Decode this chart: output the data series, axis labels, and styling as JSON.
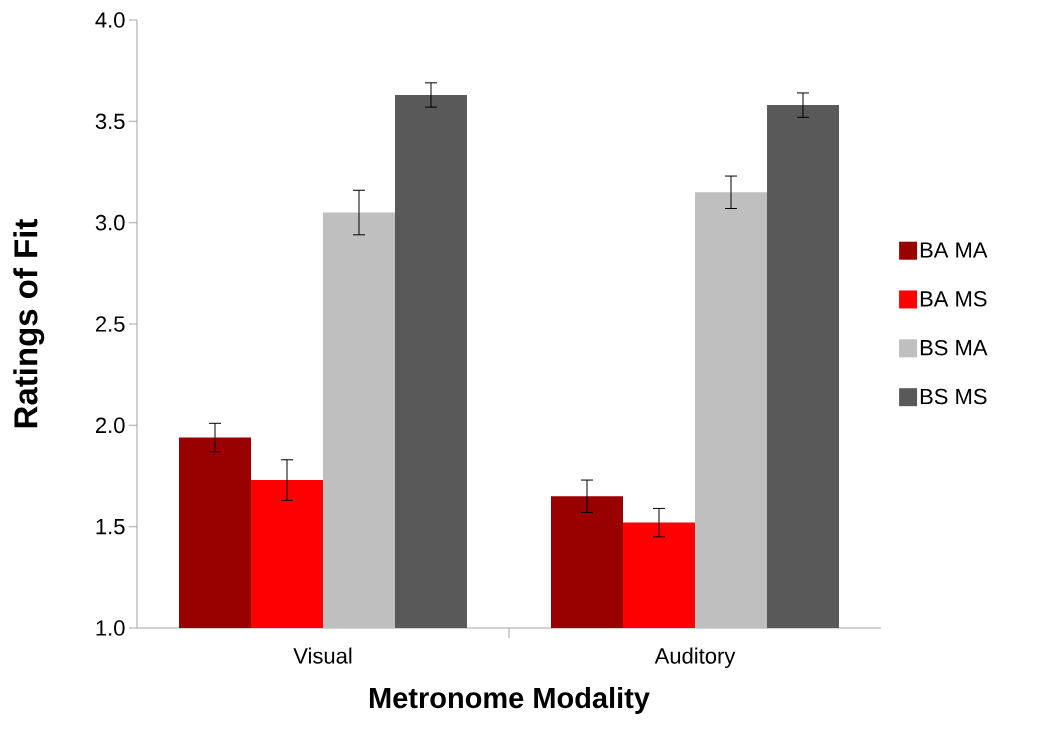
{
  "chart_data": {
    "type": "bar",
    "xlabel": "Metronome Modality",
    "ylabel": "Ratings of Fit",
    "categories": [
      "Visual",
      "Auditory"
    ],
    "series": [
      {
        "name": "BA MA",
        "color": "#990000",
        "values": [
          1.94,
          1.65
        ],
        "errors": [
          0.07,
          0.08
        ]
      },
      {
        "name": "BA MS",
        "color": "#ff0000",
        "values": [
          1.73,
          1.52
        ],
        "errors": [
          0.1,
          0.07
        ]
      },
      {
        "name": "BS MA",
        "color": "#bfbfbf",
        "values": [
          3.05,
          3.15
        ],
        "errors": [
          0.11,
          0.08
        ]
      },
      {
        "name": "BS MS",
        "color": "#595959",
        "values": [
          3.63,
          3.58
        ],
        "errors": [
          0.06,
          0.06
        ]
      }
    ],
    "ylim": [
      1.0,
      4.0
    ],
    "yticks": [
      {
        "value": 1.0,
        "label": "1.0"
      },
      {
        "value": 1.5,
        "label": "1.5"
      },
      {
        "value": 2.0,
        "label": "2.0"
      },
      {
        "value": 2.5,
        "label": "2.5"
      },
      {
        "value": 3.0,
        "label": "3.0"
      },
      {
        "value": 3.5,
        "label": "3.5"
      },
      {
        "value": 4.0,
        "label": "4.0"
      }
    ],
    "grid": false,
    "legend": "right"
  }
}
